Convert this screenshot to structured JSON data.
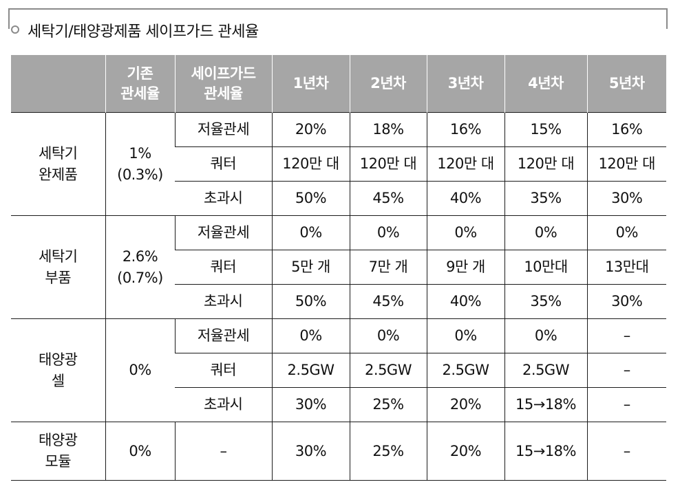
{
  "title": "세탁기/태양광제품 세이프가드 관세율",
  "header": {
    "col0": "",
    "base_rate": [
      "기존",
      "관세율"
    ],
    "safeguard_rate": [
      "세이프가드",
      "관세율"
    ],
    "years": [
      "1년차",
      "2년차",
      "3년차",
      "4년차",
      "5년차"
    ]
  },
  "groups": [
    {
      "name": [
        "세탁기",
        "완제품"
      ],
      "base": [
        "1%",
        "(0.3%)"
      ],
      "rows": [
        {
          "label": "저율관세",
          "values": [
            "20%",
            "18%",
            "16%",
            "15%",
            "16%"
          ]
        },
        {
          "label": "쿼터",
          "values": [
            "120만 대",
            "120만 대",
            "120만 대",
            "120만 대",
            "120만 대"
          ]
        },
        {
          "label": "초과시",
          "values": [
            "50%",
            "45%",
            "40%",
            "35%",
            "30%"
          ]
        }
      ]
    },
    {
      "name": [
        "세탁기",
        "부품"
      ],
      "base": [
        "2.6%",
        "(0.7%)"
      ],
      "rows": [
        {
          "label": "저율관세",
          "values": [
            "0%",
            "0%",
            "0%",
            "0%",
            "0%"
          ]
        },
        {
          "label": "쿼터",
          "values": [
            "5만 개",
            "7만 개",
            "9만 개",
            "10만대",
            "13만대"
          ]
        },
        {
          "label": "초과시",
          "values": [
            "50%",
            "45%",
            "40%",
            "35%",
            "30%"
          ]
        }
      ]
    },
    {
      "name": [
        "태양광",
        "셀"
      ],
      "base": [
        "0%",
        ""
      ],
      "rows": [
        {
          "label": "저율관세",
          "values": [
            "0%",
            "0%",
            "0%",
            "0%",
            "–"
          ]
        },
        {
          "label": "쿼터",
          "values": [
            "2.5GW",
            "2.5GW",
            "2.5GW",
            "2.5GW",
            "–"
          ]
        },
        {
          "label": "초과시",
          "values": [
            "30%",
            "25%",
            "20%",
            "15→18%",
            "–"
          ]
        }
      ]
    }
  ],
  "module": {
    "name": [
      "태양광",
      "모듈"
    ],
    "base": "0%",
    "label": "–",
    "values": [
      "30%",
      "25%",
      "20%",
      "15→18%",
      "–"
    ]
  }
}
